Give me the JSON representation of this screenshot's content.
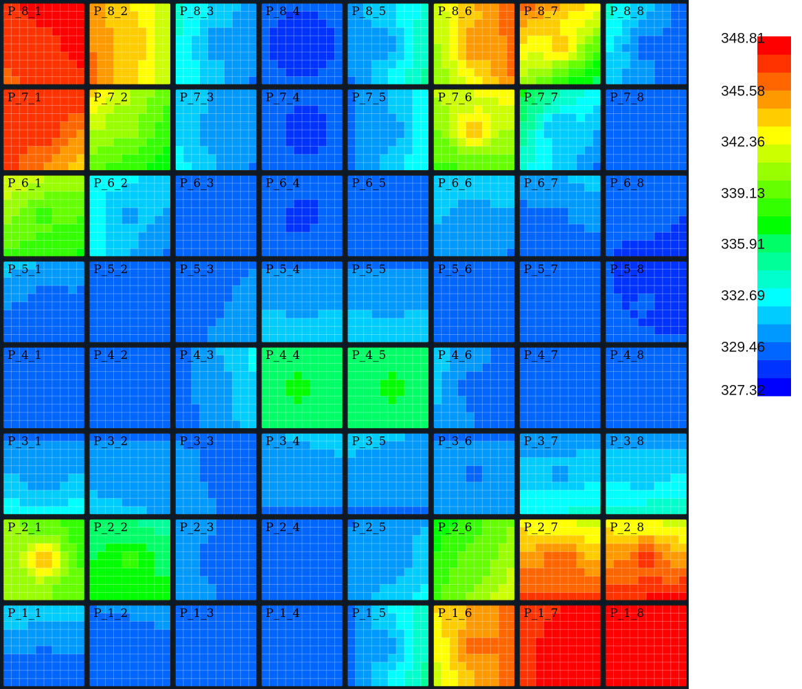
{
  "chart_data": {
    "type": "heatmap",
    "grid_rows": 8,
    "grid_cols": 8,
    "cells_per_panel": 10,
    "grid_lines": true,
    "legend_placement": "right",
    "value_range": [
      327.32,
      348.81
    ],
    "colorbar": {
      "tick_labels": [
        "348.81",
        "345.58",
        "342.36",
        "339.13",
        "335.91",
        "332.69",
        "329.46",
        "327.32"
      ],
      "tick_values": [
        348.81,
        345.58,
        342.36,
        339.13,
        335.91,
        332.69,
        329.46,
        327.32
      ],
      "colors_low_to_high": [
        "#0000ff",
        "#0033ff",
        "#0066ff",
        "#0099ff",
        "#00ccff",
        "#00ffff",
        "#00ffcc",
        "#00ff99",
        "#00ff66",
        "#00ff00",
        "#33ff00",
        "#66ff00",
        "#99ff00",
        "#ccff00",
        "#ffff00",
        "#ffcc00",
        "#ff9900",
        "#ff6600",
        "#ff3300",
        "#ff0000"
      ]
    },
    "panels": [
      {
        "label": "P_8_1",
        "row": 8,
        "col": 1,
        "corner_values": [
          347.5,
          348.8,
          346.5,
          347.5
        ],
        "center": 347.5
      },
      {
        "label": "P_8_2",
        "row": 8,
        "col": 2,
        "corner_values": [
          345.0,
          342.0,
          346.0,
          341.5
        ],
        "center": 344.5
      },
      {
        "label": "P_8_3",
        "row": 8,
        "col": 3,
        "corner_values": [
          334.0,
          331.0,
          333.5,
          330.5
        ],
        "center": 331.0
      },
      {
        "label": "P_8_4",
        "row": 8,
        "col": 4,
        "corner_values": [
          329.5,
          329.5,
          329.5,
          329.5
        ],
        "center": 328.5
      },
      {
        "label": "P_8_5",
        "row": 8,
        "col": 5,
        "corner_values": [
          331.0,
          334.0,
          330.5,
          335.0
        ],
        "center": 331.0
      },
      {
        "label": "P_8_6",
        "row": 8,
        "col": 6,
        "corner_values": [
          342.0,
          346.5,
          340.5,
          345.5
        ],
        "center": 345.5
      },
      {
        "label": "P_8_7",
        "row": 8,
        "col": 7,
        "corner_values": [
          346.0,
          343.0,
          341.0,
          336.5
        ],
        "center": 344.0
      },
      {
        "label": "P_8_8",
        "row": 8,
        "col": 8,
        "corner_values": [
          334.0,
          330.0,
          332.0,
          329.5
        ],
        "center": 330.0
      },
      {
        "label": "P_7_1",
        "row": 7,
        "col": 1,
        "corner_values": [
          347.5,
          347.5,
          347.0,
          344.0
        ],
        "center": 347.5
      },
      {
        "label": "P_7_2",
        "row": 7,
        "col": 2,
        "corner_values": [
          343.5,
          339.5,
          339.5,
          337.5
        ],
        "center": 340.5
      },
      {
        "label": "P_7_3",
        "row": 7,
        "col": 3,
        "corner_values": [
          332.0,
          331.0,
          333.0,
          330.5
        ],
        "center": 331.0
      },
      {
        "label": "P_7_4",
        "row": 7,
        "col": 4,
        "corner_values": [
          330.0,
          329.5,
          330.0,
          329.5
        ],
        "center": 328.5
      },
      {
        "label": "P_7_5",
        "row": 7,
        "col": 5,
        "corner_values": [
          330.5,
          333.0,
          330.5,
          333.5
        ],
        "center": 331.0
      },
      {
        "label": "P_7_6",
        "row": 7,
        "col": 6,
        "corner_values": [
          341.5,
          343.0,
          339.0,
          339.5
        ],
        "center": 344.5
      },
      {
        "label": "P_7_7",
        "row": 7,
        "col": 7,
        "corner_values": [
          337.0,
          333.0,
          334.0,
          330.5
        ],
        "center": 331.5
      },
      {
        "label": "P_7_8",
        "row": 7,
        "col": 8,
        "corner_values": [
          330.5,
          329.5,
          329.5,
          329.5
        ],
        "center": 329.5
      },
      {
        "label": "P_6_1",
        "row": 6,
        "col": 1,
        "corner_values": [
          342.0,
          340.5,
          339.0,
          338.0
        ],
        "center": 339.0
      },
      {
        "label": "P_6_2",
        "row": 6,
        "col": 2,
        "corner_values": [
          333.0,
          332.5,
          333.0,
          330.5
        ],
        "center": 331.5
      },
      {
        "label": "P_6_3",
        "row": 6,
        "col": 3,
        "corner_values": [
          330.5,
          330.5,
          330.5,
          330.5
        ],
        "center": 330.0
      },
      {
        "label": "P_6_4",
        "row": 6,
        "col": 4,
        "corner_values": [
          330.0,
          329.5,
          329.5,
          330.0
        ],
        "center": 329.0
      },
      {
        "label": "P_6_5",
        "row": 6,
        "col": 5,
        "corner_values": [
          330.5,
          330.5,
          330.5,
          330.5
        ],
        "center": 330.0
      },
      {
        "label": "P_6_6",
        "row": 6,
        "col": 6,
        "corner_values": [
          332.5,
          332.5,
          331.0,
          330.5
        ],
        "center": 330.5
      },
      {
        "label": "P_6_7",
        "row": 6,
        "col": 7,
        "corner_values": [
          331.0,
          332.0,
          329.5,
          330.0
        ],
        "center": 330.5
      },
      {
        "label": "P_6_8",
        "row": 6,
        "col": 8,
        "corner_values": [
          330.0,
          330.0,
          329.5,
          329.0
        ],
        "center": 330.0
      },
      {
        "label": "P_5_1",
        "row": 5,
        "col": 1,
        "corner_values": [
          332.0,
          331.0,
          329.5,
          329.5
        ],
        "center": 330.0
      },
      {
        "label": "P_5_2",
        "row": 5,
        "col": 2,
        "corner_values": [
          330.5,
          330.0,
          330.0,
          329.5
        ],
        "center": 330.0
      },
      {
        "label": "P_5_3",
        "row": 5,
        "col": 3,
        "corner_values": [
          329.5,
          330.5,
          330.0,
          331.5
        ],
        "center": 330.5
      },
      {
        "label": "P_5_4",
        "row": 5,
        "col": 4,
        "corner_values": [
          330.5,
          330.5,
          332.5,
          332.5
        ],
        "center": 331.0
      },
      {
        "label": "P_5_5",
        "row": 5,
        "col": 5,
        "corner_values": [
          330.5,
          330.5,
          332.5,
          332.5
        ],
        "center": 331.0
      },
      {
        "label": "P_5_6",
        "row": 5,
        "col": 6,
        "corner_values": [
          330.5,
          329.5,
          330.5,
          329.5
        ],
        "center": 330.0
      },
      {
        "label": "P_5_7",
        "row": 5,
        "col": 7,
        "corner_values": [
          330.0,
          329.5,
          329.5,
          329.5
        ],
        "center": 329.5
      },
      {
        "label": "P_5_8",
        "row": 5,
        "col": 8,
        "corner_values": [
          329.5,
          329.0,
          329.5,
          329.5
        ],
        "center": 329.5
      },
      {
        "label": "P_4_1",
        "row": 4,
        "col": 1,
        "corner_values": [
          329.5,
          329.5,
          329.5,
          329.5
        ],
        "center": 329.5
      },
      {
        "label": "P_4_2",
        "row": 4,
        "col": 2,
        "corner_values": [
          329.5,
          329.5,
          329.5,
          329.5
        ],
        "center": 329.5
      },
      {
        "label": "P_4_3",
        "row": 4,
        "col": 3,
        "corner_values": [
          330.0,
          333.0,
          330.0,
          332.0
        ],
        "center": 331.0
      },
      {
        "label": "P_4_4",
        "row": 4,
        "col": 4,
        "corner_values": [
          336.5,
          336.0,
          336.5,
          336.0
        ],
        "center": 337.5
      },
      {
        "label": "P_4_5",
        "row": 4,
        "col": 5,
        "corner_values": [
          336.0,
          336.5,
          336.0,
          336.5
        ],
        "center": 337.5
      },
      {
        "label": "P_4_6",
        "row": 4,
        "col": 6,
        "corner_values": [
          332.0,
          330.0,
          331.5,
          329.5
        ],
        "center": 330.0
      },
      {
        "label": "P_4_7",
        "row": 4,
        "col": 7,
        "corner_values": [
          330.0,
          329.5,
          330.0,
          329.5
        ],
        "center": 329.5
      },
      {
        "label": "P_4_8",
        "row": 4,
        "col": 8,
        "corner_values": [
          329.5,
          329.5,
          329.5,
          329.5
        ],
        "center": 329.5
      },
      {
        "label": "P_3_1",
        "row": 3,
        "col": 1,
        "corner_values": [
          330.5,
          330.5,
          333.0,
          333.0
        ],
        "center": 330.5
      },
      {
        "label": "P_3_2",
        "row": 3,
        "col": 2,
        "corner_values": [
          330.5,
          330.5,
          332.0,
          331.5
        ],
        "center": 330.5
      },
      {
        "label": "P_3_3",
        "row": 3,
        "col": 3,
        "corner_values": [
          330.5,
          330.5,
          331.0,
          330.0
        ],
        "center": 330.5
      },
      {
        "label": "P_3_4",
        "row": 3,
        "col": 4,
        "corner_values": [
          331.5,
          332.0,
          330.5,
          330.5
        ],
        "center": 330.5
      },
      {
        "label": "P_3_5",
        "row": 3,
        "col": 5,
        "corner_values": [
          332.0,
          331.5,
          330.5,
          330.5
        ],
        "center": 330.5
      },
      {
        "label": "P_3_6",
        "row": 3,
        "col": 6,
        "corner_values": [
          330.5,
          330.5,
          331.0,
          331.5
        ],
        "center": 330.5
      },
      {
        "label": "P_3_7",
        "row": 3,
        "col": 7,
        "corner_values": [
          331.0,
          331.0,
          333.5,
          334.0
        ],
        "center": 331.5
      },
      {
        "label": "P_3_8",
        "row": 3,
        "col": 8,
        "corner_values": [
          331.0,
          331.0,
          334.0,
          334.5
        ],
        "center": 332.0
      },
      {
        "label": "P_2_1",
        "row": 2,
        "col": 1,
        "corner_values": [
          340.5,
          338.5,
          341.0,
          339.5
        ],
        "center": 344.5
      },
      {
        "label": "P_2_2",
        "row": 2,
        "col": 2,
        "corner_values": [
          336.5,
          335.5,
          337.5,
          337.5
        ],
        "center": 338.5
      },
      {
        "label": "P_2_3",
        "row": 2,
        "col": 3,
        "corner_values": [
          331.5,
          329.5,
          331.5,
          329.5
        ],
        "center": 330.0
      },
      {
        "label": "P_2_4",
        "row": 2,
        "col": 4,
        "corner_values": [
          330.0,
          329.5,
          330.0,
          329.5
        ],
        "center": 329.5
      },
      {
        "label": "P_2_5",
        "row": 2,
        "col": 5,
        "corner_values": [
          330.5,
          331.5,
          331.0,
          333.0
        ],
        "center": 330.5
      },
      {
        "label": "P_2_6",
        "row": 2,
        "col": 6,
        "corner_values": [
          337.5,
          340.0,
          339.0,
          342.0
        ],
        "center": 339.5
      },
      {
        "label": "P_2_7",
        "row": 2,
        "col": 7,
        "corner_values": [
          343.0,
          342.0,
          347.0,
          347.0
        ],
        "center": 346.5
      },
      {
        "label": "P_2_8",
        "row": 2,
        "col": 8,
        "corner_values": [
          343.0,
          342.0,
          347.5,
          348.0
        ],
        "center": 347.0
      },
      {
        "label": "P_1_1",
        "row": 1,
        "col": 1,
        "corner_values": [
          332.5,
          332.0,
          329.5,
          329.5
        ],
        "center": 330.5
      },
      {
        "label": "P_1_2",
        "row": 1,
        "col": 2,
        "corner_values": [
          330.5,
          331.0,
          329.5,
          329.5
        ],
        "center": 330.0
      },
      {
        "label": "P_1_3",
        "row": 1,
        "col": 3,
        "corner_values": [
          329.5,
          329.5,
          329.5,
          329.5
        ],
        "center": 329.5
      },
      {
        "label": "P_1_4",
        "row": 1,
        "col": 4,
        "corner_values": [
          329.5,
          329.5,
          329.5,
          329.5
        ],
        "center": 329.5
      },
      {
        "label": "P_1_5",
        "row": 1,
        "col": 5,
        "corner_values": [
          330.5,
          334.5,
          330.5,
          335.0
        ],
        "center": 331.0
      },
      {
        "label": "P_1_6",
        "row": 1,
        "col": 6,
        "corner_values": [
          343.5,
          346.0,
          342.0,
          346.5
        ],
        "center": 346.0
      },
      {
        "label": "P_1_7",
        "row": 1,
        "col": 7,
        "corner_values": [
          347.0,
          348.5,
          347.5,
          348.8
        ],
        "center": 348.5
      },
      {
        "label": "P_1_8",
        "row": 1,
        "col": 8,
        "corner_values": [
          348.0,
          348.8,
          348.5,
          348.8
        ],
        "center": 348.5
      }
    ]
  }
}
